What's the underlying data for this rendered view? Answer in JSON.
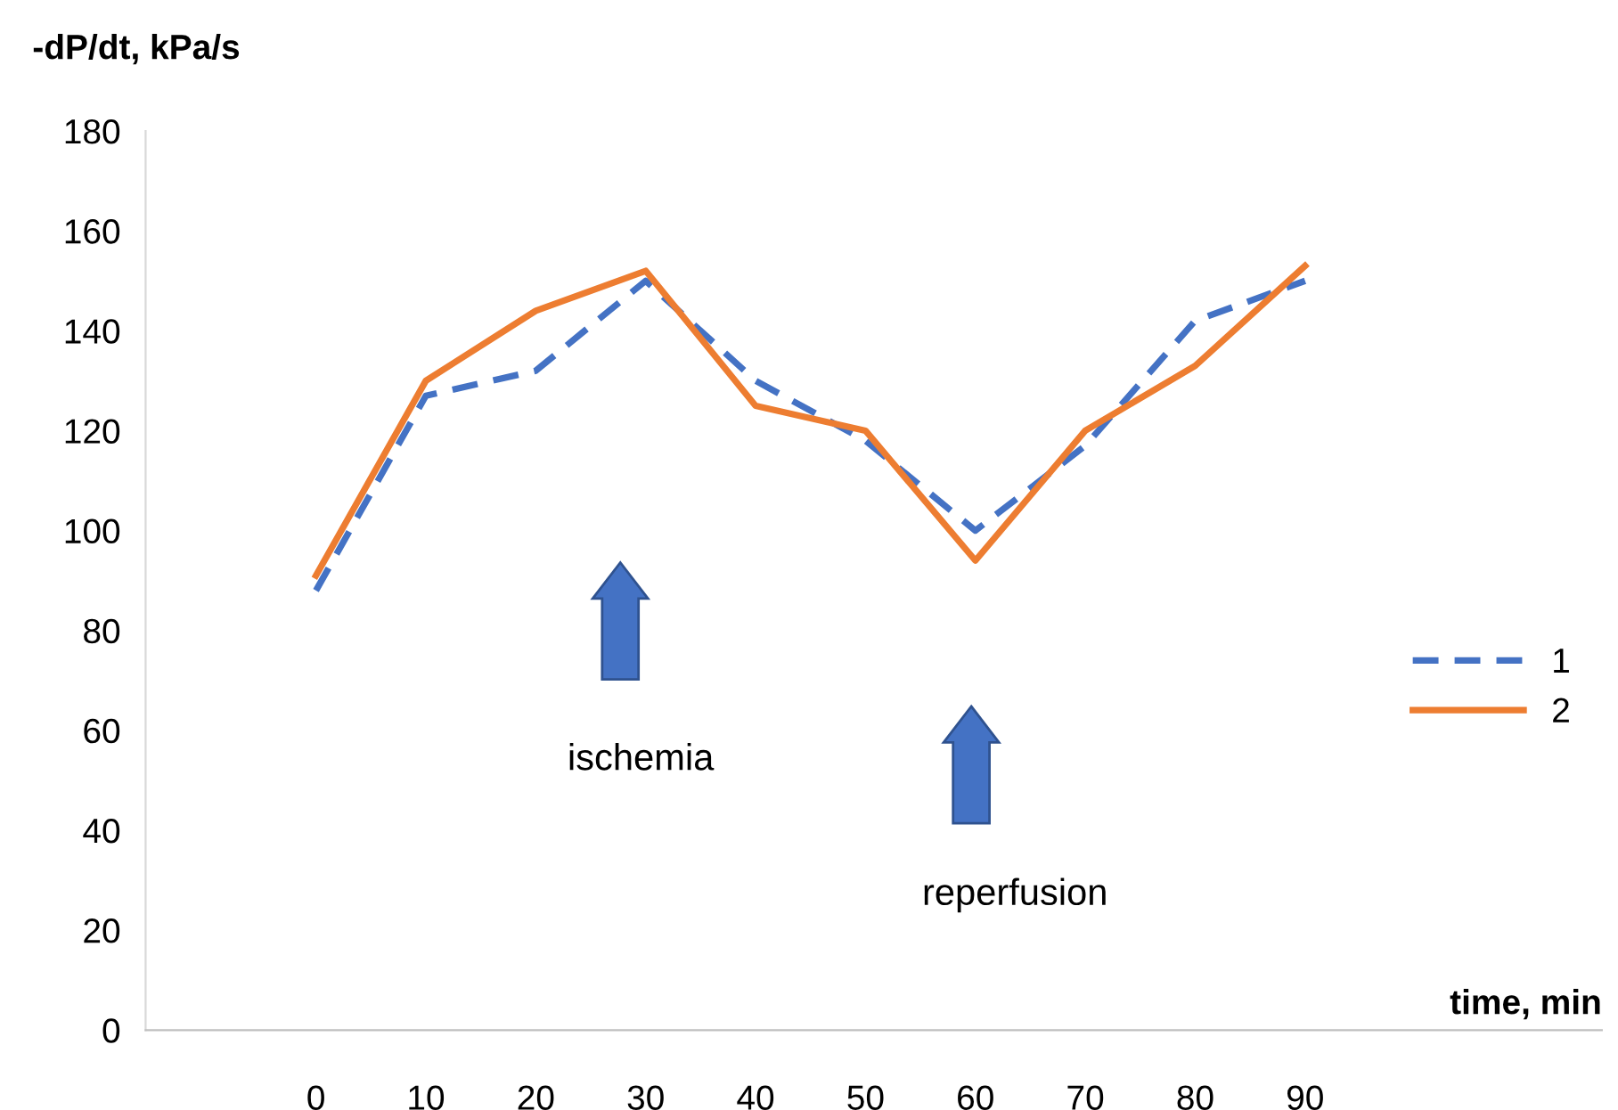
{
  "chart_data": {
    "type": "line",
    "ylabel": "-dP/dt, kPa/s",
    "xlabel": "time, min",
    "categories": [
      "0",
      "10",
      "20",
      "30",
      "40",
      "50",
      "60",
      "70",
      "80",
      "90"
    ],
    "series": [
      {
        "name": "1",
        "color": "#4472c4",
        "line_style": "dashed",
        "values": [
          88,
          127,
          132,
          150,
          130,
          118,
          100,
          117,
          142,
          150
        ]
      },
      {
        "name": "2",
        "color": "#ed7d31",
        "line_style": "solid",
        "values": [
          91,
          130,
          144,
          152,
          125,
          120,
          94,
          120,
          133,
          153
        ]
      }
    ],
    "ylim": [
      0,
      180
    ],
    "yticks": [
      0,
      20,
      40,
      60,
      80,
      100,
      120,
      140,
      160,
      180
    ],
    "annotations": [
      "ischemia",
      "reperfusion"
    ],
    "grid": false,
    "legend": "right",
    "marker": "none"
  }
}
